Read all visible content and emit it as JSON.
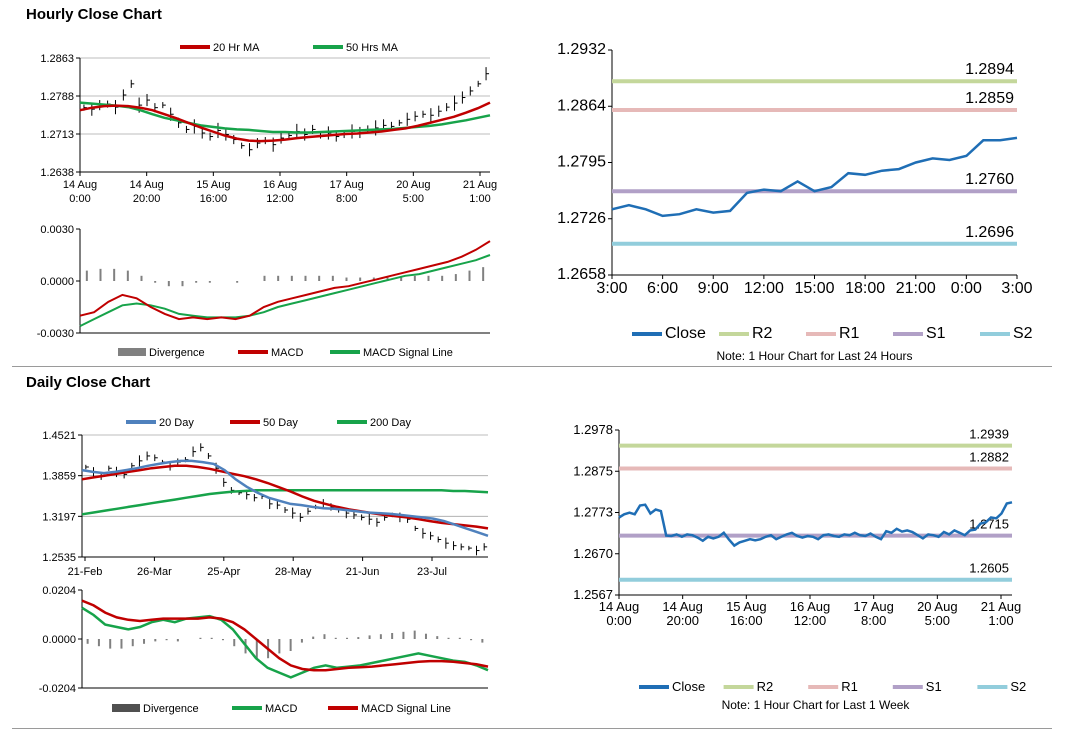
{
  "sections": {
    "hourly_title": "Hourly Close Chart",
    "daily_title": "Daily Close Chart"
  },
  "colors": {
    "red": "#c00000",
    "green": "#17a34a",
    "blue": "#4f81bd",
    "close": "#1f6eb5",
    "r2": "#c4d79b",
    "r1": "#e6b9b8",
    "s1": "#b1a0c7",
    "s2": "#92cddc",
    "bar": "#808080",
    "grid": "#a6a6a6"
  },
  "chart_data": [
    {
      "id": "hourly_price",
      "type": "line",
      "legend": [
        "20 Hr MA",
        "50 Hrs MA"
      ],
      "x_labels": [
        [
          "14 Aug",
          "0:00"
        ],
        [
          "14 Aug",
          "20:00"
        ],
        [
          "15 Aug",
          "16:00"
        ],
        [
          "16 Aug",
          "12:00"
        ],
        [
          "17 Aug",
          "8:00"
        ],
        [
          "20 Aug",
          "5:00"
        ],
        [
          "21 Aug",
          "1:00"
        ]
      ],
      "y_ticks": [
        "1.2863",
        "1.2788",
        "1.2713",
        "1.2638"
      ],
      "ylim": [
        1.2638,
        1.2863
      ],
      "series": [
        {
          "name": "Close",
          "values": [
            1.2765,
            1.2762,
            1.277,
            1.2772,
            1.2766,
            1.279,
            1.2812,
            1.277,
            1.278,
            1.2765,
            1.277,
            1.2752,
            1.2735,
            1.2722,
            1.2728,
            1.2715,
            1.2708,
            1.272,
            1.2712,
            1.2702,
            1.269,
            1.2682,
            1.2695,
            1.27,
            1.2692,
            1.2705,
            1.271,
            1.2718,
            1.2712,
            1.2722,
            1.271,
            1.2715,
            1.2708,
            1.2712,
            1.2718,
            1.2716,
            1.2722,
            1.2725,
            1.273,
            1.2728,
            1.2735,
            1.2742,
            1.2748,
            1.2752,
            1.275,
            1.2758,
            1.2766,
            1.2774,
            1.2785,
            1.2798,
            1.2812,
            1.2832
          ]
        },
        {
          "name": "20 Hr MA",
          "values": [
            1.276,
            1.2765,
            1.2768,
            1.2769,
            1.2768,
            1.2765,
            1.276,
            1.2752,
            1.2744,
            1.2735,
            1.2726,
            1.2718,
            1.271,
            1.2704,
            1.27,
            1.2699,
            1.27,
            1.2702,
            1.2705,
            1.2707,
            1.2709,
            1.2711,
            1.2713,
            1.2714,
            1.2716,
            1.2718,
            1.2721,
            1.2724,
            1.2729,
            1.2735,
            1.2741,
            1.2747,
            1.2755,
            1.2764,
            1.2775
          ]
        },
        {
          "name": "50 Hrs MA",
          "values": [
            1.2775,
            1.2773,
            1.2771,
            1.2769,
            1.2766,
            1.276,
            1.2752,
            1.2745,
            1.274,
            1.2735,
            1.273,
            1.2727,
            1.2724,
            1.2722,
            1.2721,
            1.2719,
            1.2717,
            1.2717,
            1.2716,
            1.2716,
            1.2717,
            1.2718,
            1.2719,
            1.272,
            1.2721,
            1.2722,
            1.2723,
            1.2725,
            1.2727,
            1.2729,
            1.2732,
            1.2736,
            1.274,
            1.2745,
            1.275
          ]
        }
      ]
    },
    {
      "id": "hourly_macd",
      "type": "line",
      "legend": [
        "Divergence",
        "MACD",
        "MACD Signal Line"
      ],
      "y_ticks": [
        "0.0030",
        "0.0000",
        "-0.0030"
      ],
      "ylim": [
        -0.003,
        0.003
      ],
      "series": [
        {
          "name": "MACD",
          "values": [
            -0.002,
            -0.0018,
            -0.0012,
            -0.0008,
            -0.001,
            -0.0015,
            -0.0019,
            -0.0022,
            -0.0021,
            -0.0022,
            -0.0021,
            -0.0022,
            -0.002,
            -0.0015,
            -0.0012,
            -0.001,
            -0.0008,
            -0.0006,
            -0.0004,
            -0.0003,
            -0.0001,
            0.0001,
            0.0003,
            0.0005,
            0.0007,
            0.0009,
            0.0011,
            0.0014,
            0.0018,
            0.0023
          ]
        },
        {
          "name": "MACD Signal Line",
          "values": [
            -0.0026,
            -0.0022,
            -0.0018,
            -0.0014,
            -0.0013,
            -0.0014,
            -0.0016,
            -0.0019,
            -0.002,
            -0.0021,
            -0.0021,
            -0.0021,
            -0.002,
            -0.0018,
            -0.0015,
            -0.0013,
            -0.0011,
            -0.0009,
            -0.0007,
            -0.0005,
            -0.0003,
            -0.0001,
            0.0001,
            0.0003,
            0.0004,
            0.0006,
            0.0008,
            0.001,
            0.0012,
            0.0015
          ]
        },
        {
          "name": "Divergence",
          "values": [
            0.0006,
            0.0007,
            0.0007,
            0.0006,
            0.0003,
            -0.0001,
            -0.0003,
            -0.0003,
            -0.0001,
            -0.0001,
            0.0,
            -0.0001,
            0.0,
            0.0003,
            0.0003,
            0.0003,
            0.0003,
            0.0003,
            0.0003,
            0.0002,
            0.0002,
            0.0002,
            0.0002,
            0.0002,
            0.0003,
            0.0003,
            0.0003,
            0.0004,
            0.0006,
            0.0008
          ]
        }
      ]
    },
    {
      "id": "hourly_pivot",
      "type": "line",
      "legend": [
        "Close",
        "R2",
        "R1",
        "S1",
        "S2"
      ],
      "note": "Note: 1 Hour Chart for Last 24 Hours",
      "x_labels": [
        "3:00",
        "6:00",
        "9:00",
        "12:00",
        "15:00",
        "18:00",
        "21:00",
        "0:00",
        "3:00"
      ],
      "y_ticks": [
        "1.2932",
        "1.2864",
        "1.2795",
        "1.2726",
        "1.2658"
      ],
      "ylim": [
        1.2658,
        1.2932
      ],
      "levels": {
        "R2": 1.2894,
        "R1": 1.2859,
        "S1": 1.276,
        "S2": 1.2696
      },
      "level_labels": {
        "R2": "1.2894",
        "R1": "1.2859",
        "S1": "1.2760",
        "S2": "1.2696"
      },
      "series": [
        {
          "name": "Close",
          "values": [
            1.2738,
            1.2743,
            1.2738,
            1.273,
            1.2732,
            1.2738,
            1.2734,
            1.2736,
            1.2758,
            1.2762,
            1.276,
            1.2772,
            1.276,
            1.2765,
            1.2782,
            1.278,
            1.2785,
            1.2787,
            1.2795,
            1.28,
            1.2798,
            1.2803,
            1.2822,
            1.2822,
            1.2825
          ]
        }
      ]
    },
    {
      "id": "daily_price",
      "type": "line",
      "legend": [
        "20 Day",
        "50 Day",
        "200 Day"
      ],
      "x_labels": [
        "21-Feb",
        "26-Mar",
        "25-Apr",
        "28-May",
        "21-Jun",
        "23-Jul"
      ],
      "y_ticks": [
        "1.4521",
        "1.3859",
        "1.3197",
        "1.2535"
      ],
      "ylim": [
        1.2535,
        1.4521
      ],
      "series": [
        {
          "name": "Close",
          "values": [
            1.4,
            1.392,
            1.385,
            1.398,
            1.392,
            1.388,
            1.402,
            1.41,
            1.418,
            1.415,
            1.408,
            1.402,
            1.408,
            1.412,
            1.425,
            1.432,
            1.418,
            1.398,
            1.375,
            1.362,
            1.358,
            1.355,
            1.35,
            1.352,
            1.34,
            1.338,
            1.33,
            1.325,
            1.318,
            1.328,
            1.335,
            1.34,
            1.335,
            1.33,
            1.325,
            1.322,
            1.318,
            1.315,
            1.31,
            1.318,
            1.322,
            1.318,
            1.315,
            1.3,
            1.292,
            1.288,
            1.282,
            1.276,
            1.272,
            1.27,
            1.268,
            1.264,
            1.27
          ]
        },
        {
          "name": "20 Day",
          "values": [
            1.395,
            1.392,
            1.39,
            1.392,
            1.395,
            1.398,
            1.402,
            1.405,
            1.408,
            1.41,
            1.41,
            1.408,
            1.405,
            1.395,
            1.38,
            1.368,
            1.358,
            1.35,
            1.345,
            1.34,
            1.338,
            1.335,
            1.333,
            1.332,
            1.33,
            1.328,
            1.326,
            1.325,
            1.324,
            1.322,
            1.32,
            1.318,
            1.316,
            1.312,
            1.306,
            1.3,
            1.294,
            1.288
          ]
        },
        {
          "name": "50 Day",
          "values": [
            1.38,
            1.383,
            1.386,
            1.389,
            1.392,
            1.395,
            1.398,
            1.4,
            1.402,
            1.402,
            1.4,
            1.397,
            1.393,
            1.389,
            1.385,
            1.38,
            1.374,
            1.367,
            1.36,
            1.352,
            1.345,
            1.34,
            1.335,
            1.331,
            1.328,
            1.325,
            1.322,
            1.32,
            1.318,
            1.315,
            1.312,
            1.309,
            1.307,
            1.305,
            1.303,
            1.3
          ]
        },
        {
          "name": "200 Day",
          "values": [
            1.323,
            1.326,
            1.329,
            1.332,
            1.335,
            1.338,
            1.341,
            1.344,
            1.347,
            1.35,
            1.353,
            1.356,
            1.358,
            1.36,
            1.361,
            1.362,
            1.362,
            1.362,
            1.362,
            1.362,
            1.362,
            1.362,
            1.362,
            1.362,
            1.362,
            1.362,
            1.362,
            1.362,
            1.362,
            1.362,
            1.362,
            1.362,
            1.361,
            1.361,
            1.36,
            1.359
          ]
        }
      ]
    },
    {
      "id": "daily_macd",
      "type": "line",
      "legend": [
        "Divergence",
        "MACD",
        "MACD Signal Line"
      ],
      "y_ticks": [
        "0.0204",
        "0.0000",
        "-0.0204"
      ],
      "ylim": [
        -0.0204,
        0.0204
      ],
      "series": [
        {
          "name": "MACD",
          "values": [
            0.013,
            0.01,
            0.006,
            0.005,
            0.004,
            0.005,
            0.007,
            0.008,
            0.007,
            0.0085,
            0.009,
            0.0095,
            0.008,
            0.004,
            -0.002,
            -0.008,
            -0.012,
            -0.014,
            -0.016,
            -0.014,
            -0.012,
            -0.011,
            -0.012,
            -0.0115,
            -0.011,
            -0.01,
            -0.009,
            -0.008,
            -0.007,
            -0.006,
            -0.007,
            -0.008,
            -0.009,
            -0.0095,
            -0.011,
            -0.013
          ]
        },
        {
          "name": "MACD Signal Line",
          "values": [
            0.016,
            0.014,
            0.011,
            0.009,
            0.008,
            0.0075,
            0.008,
            0.0085,
            0.0085,
            0.0085,
            0.0085,
            0.009,
            0.0085,
            0.007,
            0.004,
            0.0,
            -0.004,
            -0.008,
            -0.011,
            -0.0125,
            -0.013,
            -0.013,
            -0.0125,
            -0.012,
            -0.0118,
            -0.0115,
            -0.011,
            -0.0105,
            -0.01,
            -0.0095,
            -0.0092,
            -0.0092,
            -0.0095,
            -0.01,
            -0.0105,
            -0.0115
          ]
        },
        {
          "name": "Divergence",
          "values": [
            -0.002,
            -0.003,
            -0.004,
            -0.004,
            -0.003,
            -0.002,
            -0.001,
            -0.0005,
            -0.001,
            0.0,
            0.0005,
            0.0005,
            -0.0005,
            -0.003,
            -0.006,
            -0.008,
            -0.008,
            -0.006,
            -0.005,
            -0.0015,
            0.001,
            0.002,
            0.0005,
            0.0005,
            0.0008,
            0.0015,
            0.002,
            0.0025,
            0.003,
            0.0035,
            0.0022,
            0.0012,
            0.0005,
            0.0005,
            -0.0005,
            -0.0015
          ]
        }
      ]
    },
    {
      "id": "daily_pivot",
      "type": "line",
      "legend": [
        "Close",
        "R2",
        "R1",
        "S1",
        "S2"
      ],
      "note": "Note: 1 Hour Chart for Last 1 Week",
      "x_labels": [
        [
          "14 Aug",
          "0:00"
        ],
        [
          "14 Aug",
          "20:00"
        ],
        [
          "15 Aug",
          "16:00"
        ],
        [
          "16 Aug",
          "12:00"
        ],
        [
          "17 Aug",
          "8:00"
        ],
        [
          "20 Aug",
          "5:00"
        ],
        [
          "21 Aug",
          "1:00"
        ]
      ],
      "y_ticks": [
        "1.2978",
        "1.2875",
        "1.2773",
        "1.2670",
        "1.2567"
      ],
      "ylim": [
        1.2567,
        1.2978
      ],
      "levels": {
        "R2": 1.2939,
        "R1": 1.2882,
        "S1": 1.2715,
        "S2": 1.2605
      },
      "level_labels": {
        "R2": "1.2939",
        "R1": "1.2882",
        "S1": "1.2715",
        "S2": "1.2605"
      },
      "series": [
        {
          "name": "Close",
          "values": [
            1.276,
            1.2768,
            1.2772,
            1.2768,
            1.279,
            1.2792,
            1.277,
            1.278,
            1.2776,
            1.2715,
            1.2714,
            1.2718,
            1.2712,
            1.2718,
            1.2716,
            1.271,
            1.2702,
            1.2712,
            1.2708,
            1.2712,
            1.2722,
            1.2705,
            1.269,
            1.2698,
            1.2702,
            1.2706,
            1.2703,
            1.2706,
            1.2712,
            1.2716,
            1.2706,
            1.2712,
            1.2718,
            1.2722,
            1.2714,
            1.271,
            1.2714,
            1.2712,
            1.2706,
            1.2716,
            1.2718,
            1.2714,
            1.2712,
            1.2718,
            1.2716,
            1.2722,
            1.2716,
            1.2714,
            1.272,
            1.2712,
            1.2706,
            1.2726,
            1.2722,
            1.2732,
            1.2725,
            1.2728,
            1.2724,
            1.2716,
            1.2708,
            1.2718,
            1.2716,
            1.2712,
            1.2724,
            1.2718,
            1.2728,
            1.2722,
            1.2716,
            1.2728,
            1.273,
            1.2745,
            1.2748,
            1.276,
            1.2758,
            1.277,
            1.2795,
            1.2798
          ]
        }
      ]
    }
  ]
}
